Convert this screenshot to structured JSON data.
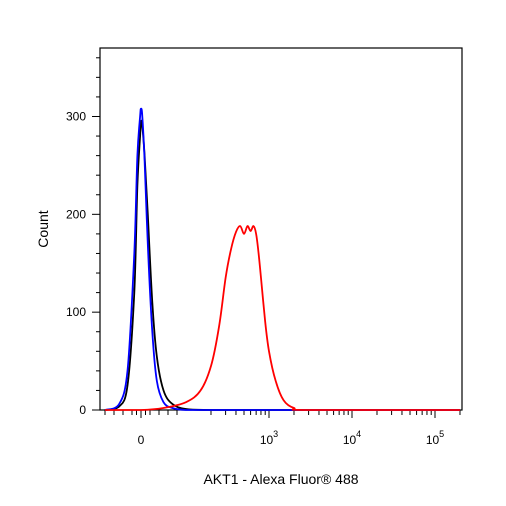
{
  "chart_data": {
    "type": "line",
    "title": "",
    "xlabel": "AKT1 - Alexa Fluor® 488",
    "ylabel": "Count",
    "x_scale": "biexponential",
    "ylim": [
      0,
      370
    ],
    "grid": false,
    "legend": "none",
    "y_ticks": [
      {
        "value": 0,
        "label": "0"
      },
      {
        "value": 100,
        "label": "100"
      },
      {
        "value": 200,
        "label": "200"
      },
      {
        "value": 300,
        "label": "300"
      }
    ],
    "x_ticks": [
      {
        "value": 0,
        "base": "0",
        "exp": ""
      },
      {
        "value": 1000,
        "base": "10",
        "exp": "3"
      },
      {
        "value": 10000,
        "base": "10",
        "exp": "4"
      },
      {
        "value": 100000,
        "base": "10",
        "exp": "5"
      }
    ],
    "series": [
      {
        "color": "#000000",
        "x": [
          -80,
          -50,
          -30,
          -15,
          -8,
          -2,
          0,
          3,
          8,
          15,
          25,
          35,
          50,
          70,
          100,
          200,
          1000,
          10000,
          200000
        ],
        "values": [
          0,
          3,
          25,
          120,
          230,
          280,
          295,
          290,
          260,
          200,
          110,
          55,
          20,
          6,
          1,
          0,
          0,
          0,
          0
        ]
      },
      {
        "color": "#0000ff",
        "x": [
          -80,
          -50,
          -30,
          -15,
          -8,
          -2,
          0,
          3,
          8,
          15,
          25,
          35,
          50,
          70,
          100,
          200,
          1000,
          10000,
          200000
        ],
        "values": [
          0,
          5,
          40,
          160,
          260,
          300,
          308,
          300,
          255,
          170,
          80,
          30,
          8,
          2,
          0,
          0,
          0,
          0,
          0
        ]
      },
      {
        "color": "#ff0000",
        "x": [
          -80,
          0,
          50,
          100,
          150,
          200,
          250,
          300,
          350,
          400,
          450,
          500,
          550,
          600,
          650,
          700,
          750,
          800,
          900,
          1000,
          1200,
          1500,
          2000,
          3000,
          200000
        ],
        "values": [
          0,
          0,
          2,
          8,
          20,
          45,
          85,
          135,
          165,
          182,
          188,
          180,
          188,
          183,
          188,
          180,
          160,
          135,
          90,
          60,
          30,
          10,
          2,
          0,
          0
        ]
      }
    ]
  }
}
